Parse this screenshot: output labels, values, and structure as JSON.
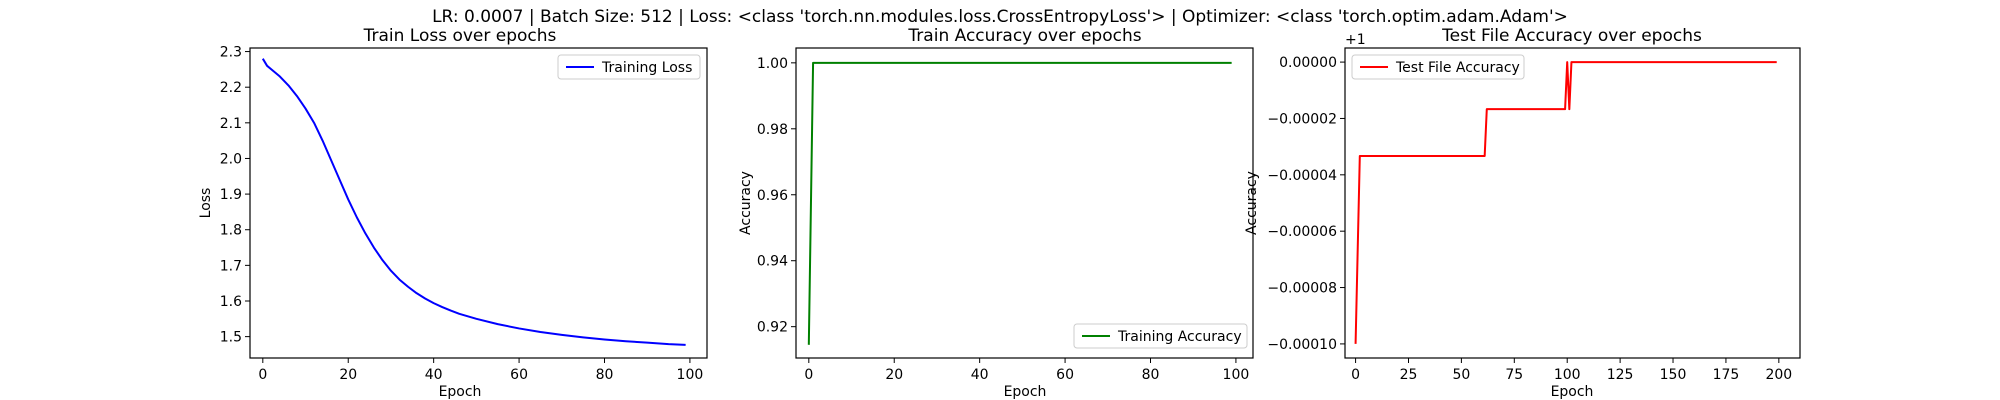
{
  "suptitle": "LR: 0.0007 | Batch Size: 512 | Loss: <class 'torch.nn.modules.loss.CrossEntropyLoss'> | Optimizer: <class 'torch.optim.adam.Adam'>",
  "chart_data": [
    {
      "type": "line",
      "title": "Train Loss over epochs",
      "xlabel": "Epoch",
      "ylabel": "Loss",
      "xlim": [
        -3,
        104
      ],
      "ylim": [
        1.44,
        2.31
      ],
      "xticks": [
        0,
        20,
        40,
        60,
        80,
        100
      ],
      "yticks": [
        1.5,
        1.6,
        1.7,
        1.8,
        1.9,
        2.0,
        2.1,
        2.2,
        2.3
      ],
      "yticklabels": [
        "1.5",
        "1.6",
        "1.7",
        "1.8",
        "1.9",
        "2.0",
        "2.1",
        "2.2",
        "2.3"
      ],
      "legend_loc": "upper-right",
      "series": [
        {
          "name": "Training Loss",
          "color": "#0000ff",
          "x": [
            0,
            1,
            2,
            4,
            6,
            8,
            10,
            12,
            14,
            16,
            18,
            20,
            22,
            24,
            26,
            28,
            30,
            32,
            34,
            36,
            38,
            40,
            42,
            44,
            46,
            48,
            50,
            55,
            60,
            65,
            70,
            75,
            80,
            85,
            90,
            95,
            99
          ],
          "y": [
            2.28,
            2.26,
            2.25,
            2.23,
            2.205,
            2.175,
            2.14,
            2.1,
            2.05,
            1.995,
            1.94,
            1.885,
            1.835,
            1.79,
            1.75,
            1.715,
            1.685,
            1.66,
            1.64,
            1.622,
            1.607,
            1.594,
            1.583,
            1.573,
            1.564,
            1.557,
            1.55,
            1.535,
            1.523,
            1.513,
            1.505,
            1.498,
            1.492,
            1.487,
            1.483,
            1.479,
            1.477
          ]
        }
      ]
    },
    {
      "type": "line",
      "title": "Train Accuracy over epochs",
      "xlabel": "Epoch",
      "ylabel": "Accuracy",
      "xlim": [
        -3,
        104
      ],
      "ylim": [
        0.9105,
        1.0045
      ],
      "xticks": [
        0,
        20,
        40,
        60,
        80,
        100
      ],
      "yticks": [
        0.92,
        0.94,
        0.96,
        0.98,
        1.0
      ],
      "yticklabels": [
        "0.92",
        "0.94",
        "0.96",
        "0.98",
        "1.00"
      ],
      "legend_loc": "lower-right",
      "series": [
        {
          "name": "Training Accuracy",
          "color": "#008000",
          "x": [
            0,
            1,
            99
          ],
          "y": [
            0.9145,
            1.0,
            1.0
          ]
        }
      ]
    },
    {
      "type": "line",
      "title": "Test File Accuracy over epochs",
      "xlabel": "Epoch",
      "ylabel": "Accuracy",
      "offset_text": "+1",
      "xlim": [
        -5,
        210
      ],
      "ylim": [
        -0.000105,
        5e-06
      ],
      "xticks": [
        0,
        25,
        50,
        75,
        100,
        125,
        150,
        175,
        200
      ],
      "yticks": [
        -0.0001,
        -8e-05,
        -6e-05,
        -4e-05,
        -2e-05,
        0
      ],
      "yticklabels": [
        "−0.00010",
        "−0.00008",
        "−0.00006",
        "−0.00004",
        "−0.00002",
        "0.00000"
      ],
      "legend_loc": "upper-left",
      "series": [
        {
          "name": "Test File Accuracy",
          "color": "#ff0000",
          "x": [
            0,
            2,
            3,
            61,
            62,
            99,
            100,
            101,
            102,
            199
          ],
          "y": [
            -0.0001,
            -3.33e-05,
            -3.33e-05,
            -3.33e-05,
            -1.67e-05,
            -1.67e-05,
            0,
            -1.67e-05,
            0,
            0
          ]
        }
      ]
    }
  ]
}
